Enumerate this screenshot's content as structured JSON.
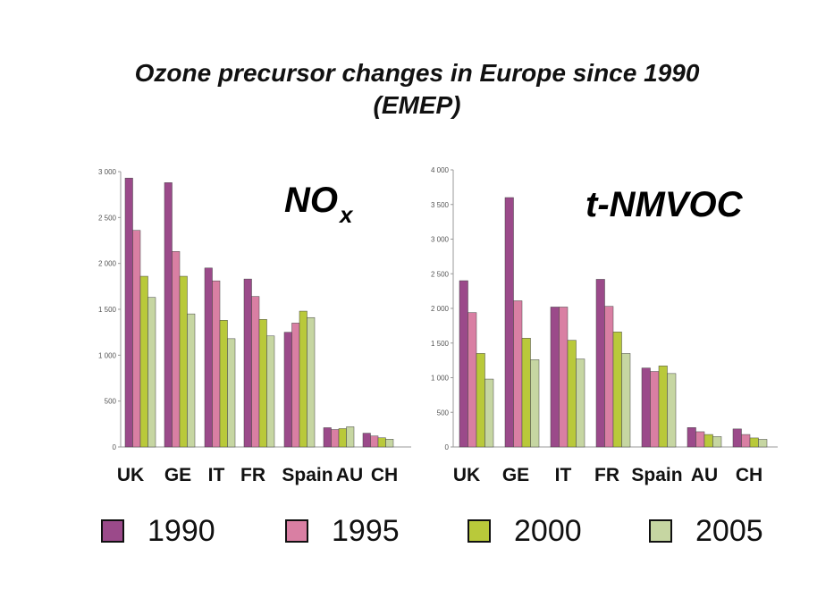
{
  "title_line1": "Ozone precursor changes in Europe since 1990",
  "title_line2": "(EMEP)",
  "legend": [
    {
      "label": "1990",
      "color": "#9b4a8a"
    },
    {
      "label": "1995",
      "color": "#d97fa3"
    },
    {
      "label": "2000",
      "color": "#b9c93a"
    },
    {
      "label": "2005",
      "color": "#c6d6a2"
    }
  ],
  "chart_data": [
    {
      "type": "bar",
      "title": "NOx",
      "title_main": "NO",
      "title_sub": "x",
      "categories": [
        "UK",
        "GE",
        "IT",
        "FR",
        "Spain",
        "AU",
        "CH"
      ],
      "yticks": [
        "3 000",
        "2 500",
        "2 000",
        "1 500",
        "1 000",
        "500",
        "0"
      ],
      "ylim": [
        0,
        3000
      ],
      "series": [
        {
          "name": "1990",
          "values": [
            2930,
            2880,
            1950,
            1830,
            1250,
            210,
            150
          ]
        },
        {
          "name": "1995",
          "values": [
            2360,
            2130,
            1810,
            1640,
            1350,
            190,
            120
          ]
        },
        {
          "name": "2000",
          "values": [
            1860,
            1860,
            1380,
            1390,
            1480,
            200,
            100
          ]
        },
        {
          "name": "2005",
          "values": [
            1630,
            1450,
            1180,
            1210,
            1410,
            220,
            85
          ]
        }
      ]
    },
    {
      "type": "bar",
      "title": "t-NMVOC",
      "title_main": "t-NMVOC",
      "title_sub": "",
      "categories": [
        "UK",
        "GE",
        "IT",
        "FR",
        "Spain",
        "AU",
        "CH"
      ],
      "yticks": [
        "4 000",
        "3 500",
        "3 000",
        "2 500",
        "2 000",
        "1 500",
        "1 000",
        "500",
        "0"
      ],
      "ylim": [
        0,
        4000
      ],
      "series": [
        {
          "name": "1990",
          "values": [
            2400,
            3600,
            2020,
            2420,
            1140,
            280,
            260
          ]
        },
        {
          "name": "1995",
          "values": [
            1940,
            2110,
            2020,
            2030,
            1090,
            220,
            180
          ]
        },
        {
          "name": "2000",
          "values": [
            1350,
            1570,
            1540,
            1660,
            1170,
            180,
            130
          ]
        },
        {
          "name": "2005",
          "values": [
            980,
            1260,
            1270,
            1350,
            1060,
            150,
            110
          ]
        }
      ]
    }
  ]
}
